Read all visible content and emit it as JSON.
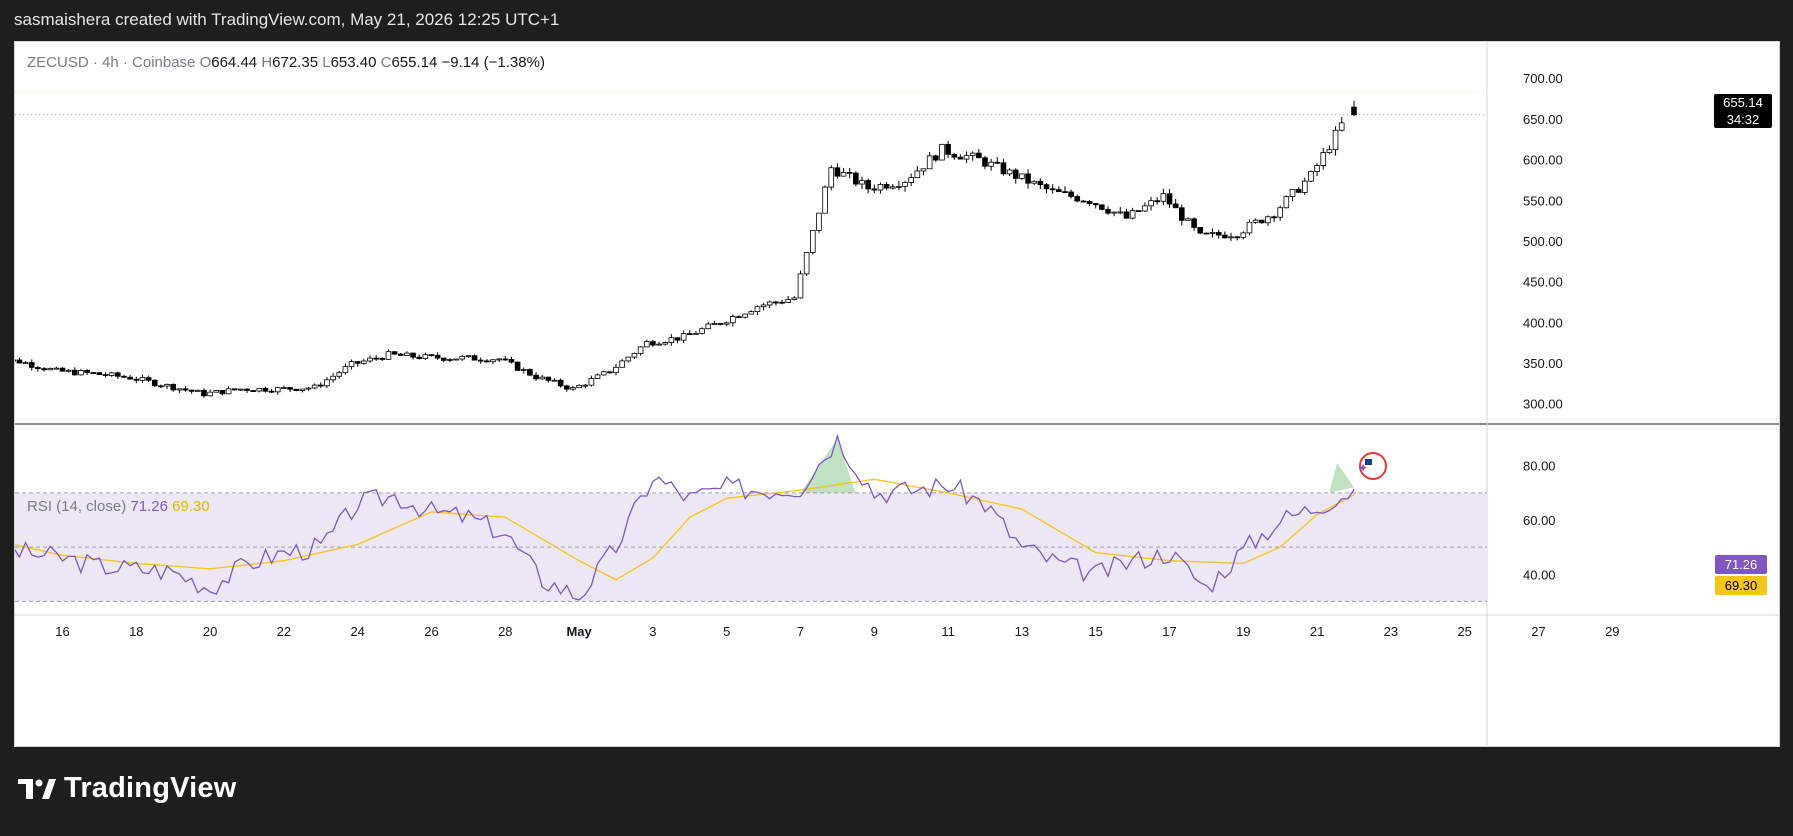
{
  "header": {
    "caption": "sasmaishera created with TradingView.com, May 21, 2026 12:25 UTC+1"
  },
  "legend": {
    "symbol": "ZECUSD · 4h · Coinbase",
    "o_label": "O",
    "o_value": "664.44",
    "h_label": "H",
    "h_value": "672.35",
    "l_label": "L",
    "l_value": "653.40",
    "c_label": "C",
    "c_value": "655.14",
    "change": "−9.14 (−1.38%)"
  },
  "rsi_legend": {
    "label": "RSI (14, close)",
    "rsi_value": "71.26",
    "ma_value": "69.30"
  },
  "last_price_badge": {
    "price": "655.14",
    "countdown": "34:32"
  },
  "brand": {
    "name": "TradingView",
    "icon": "tradingview-logo-icon"
  },
  "event_marker": {
    "icon": "us-flag-icon"
  },
  "colors": {
    "candle_up": "#ffffff",
    "candle_down": "#000000",
    "candle_border": "#000000",
    "rsi_line": "#7e57c2",
    "rsi_ma": "#f5c518",
    "rsi_band": "#ede7f6",
    "overbought_fill": "#4caf50"
  },
  "chart_data": [
    {
      "type": "candlestick",
      "x_type": "date",
      "x_tick_labels": [
        "16",
        "18",
        "20",
        "22",
        "24",
        "26",
        "28",
        "May",
        "3",
        "5",
        "7",
        "9",
        "11",
        "13",
        "15",
        "17",
        "19",
        "21",
        "23",
        "25",
        "27",
        "29"
      ],
      "y_ticks": [
        "300.00",
        "350.00",
        "400.00",
        "450.00",
        "500.00",
        "550.00",
        "600.00",
        "650.00",
        "700.00"
      ],
      "ylim": [
        275,
        715
      ],
      "date_range": [
        "2026-04-14",
        "2026-05-21"
      ],
      "close_points": [
        {
          "x": "2026-04-14",
          "y": 355
        },
        {
          "x": "2026-04-15",
          "y": 352
        },
        {
          "x": "2026-04-16",
          "y": 340
        },
        {
          "x": "2026-04-17",
          "y": 337
        },
        {
          "x": "2026-04-18",
          "y": 332
        },
        {
          "x": "2026-04-19",
          "y": 322
        },
        {
          "x": "2026-04-20",
          "y": 312
        },
        {
          "x": "2026-04-21",
          "y": 318
        },
        {
          "x": "2026-04-22",
          "y": 318
        },
        {
          "x": "2026-04-23",
          "y": 320
        },
        {
          "x": "2026-04-24",
          "y": 348
        },
        {
          "x": "2026-04-25",
          "y": 360
        },
        {
          "x": "2026-04-26",
          "y": 357
        },
        {
          "x": "2026-04-27",
          "y": 356
        },
        {
          "x": "2026-04-28",
          "y": 355
        },
        {
          "x": "2026-04-29",
          "y": 333
        },
        {
          "x": "2026-04-30",
          "y": 318
        },
        {
          "x": "2026-05-01",
          "y": 340
        },
        {
          "x": "2026-05-02",
          "y": 375
        },
        {
          "x": "2026-05-03",
          "y": 382
        },
        {
          "x": "2026-05-04",
          "y": 400
        },
        {
          "x": "2026-05-05",
          "y": 420
        },
        {
          "x": "2026-05-06",
          "y": 430
        },
        {
          "x": "2026-05-07",
          "y": 590
        },
        {
          "x": "2026-05-08",
          "y": 565
        },
        {
          "x": "2026-05-09",
          "y": 575
        },
        {
          "x": "2026-05-10",
          "y": 612
        },
        {
          "x": "2026-05-11",
          "y": 600
        },
        {
          "x": "2026-05-12",
          "y": 580
        },
        {
          "x": "2026-05-13",
          "y": 560
        },
        {
          "x": "2026-05-14",
          "y": 550
        },
        {
          "x": "2026-05-15",
          "y": 528
        },
        {
          "x": "2026-05-16",
          "y": 555
        },
        {
          "x": "2026-05-17",
          "y": 505
        },
        {
          "x": "2026-05-18",
          "y": 510
        },
        {
          "x": "2026-05-19",
          "y": 535
        },
        {
          "x": "2026-05-20",
          "y": 580
        },
        {
          "x": "2026-05-21",
          "y": 655.14
        }
      ],
      "last_candle": {
        "open": 664.44,
        "high": 672.35,
        "low": 653.4,
        "close": 655.14
      },
      "session_high": 684,
      "session_low": 300
    },
    {
      "type": "line",
      "title": "RSI (14, close)",
      "ylim": [
        25,
        95
      ],
      "y_ticks": [
        "40.00",
        "60.00",
        "80.00"
      ],
      "bands": [
        30,
        50,
        70
      ],
      "series": [
        {
          "name": "RSI",
          "points": [
            {
              "x": "2026-04-14",
              "y": 50
            },
            {
              "x": "2026-04-15",
              "y": 48
            },
            {
              "x": "2026-04-16",
              "y": 46
            },
            {
              "x": "2026-04-17",
              "y": 43
            },
            {
              "x": "2026-04-18",
              "y": 42
            },
            {
              "x": "2026-04-19",
              "y": 41
            },
            {
              "x": "2026-04-20",
              "y": 35
            },
            {
              "x": "2026-04-21",
              "y": 44
            },
            {
              "x": "2026-04-22",
              "y": 48
            },
            {
              "x": "2026-04-23",
              "y": 50
            },
            {
              "x": "2026-04-24",
              "y": 66
            },
            {
              "x": "2026-04-25",
              "y": 69
            },
            {
              "x": "2026-04-26",
              "y": 63
            },
            {
              "x": "2026-04-27",
              "y": 61
            },
            {
              "x": "2026-04-28",
              "y": 55
            },
            {
              "x": "2026-04-29",
              "y": 38
            },
            {
              "x": "2026-04-30",
              "y": 32
            },
            {
              "x": "2026-05-01",
              "y": 50
            },
            {
              "x": "2026-05-02",
              "y": 76
            },
            {
              "x": "2026-05-03",
              "y": 68
            },
            {
              "x": "2026-05-04",
              "y": 72
            },
            {
              "x": "2026-05-05",
              "y": 71
            },
            {
              "x": "2026-05-06",
              "y": 72
            },
            {
              "x": "2026-05-07",
              "y": 90
            },
            {
              "x": "2026-05-08",
              "y": 70
            },
            {
              "x": "2026-05-09",
              "y": 71
            },
            {
              "x": "2026-05-10",
              "y": 73
            },
            {
              "x": "2026-05-11",
              "y": 66
            },
            {
              "x": "2026-05-12",
              "y": 50
            },
            {
              "x": "2026-05-13",
              "y": 44
            },
            {
              "x": "2026-05-14",
              "y": 40
            },
            {
              "x": "2026-05-15",
              "y": 45
            },
            {
              "x": "2026-05-16",
              "y": 48
            },
            {
              "x": "2026-05-17",
              "y": 35
            },
            {
              "x": "2026-05-18",
              "y": 49
            },
            {
              "x": "2026-05-19",
              "y": 60
            },
            {
              "x": "2026-05-20",
              "y": 65
            },
            {
              "x": "2026-05-21",
              "y": 71.26
            }
          ]
        },
        {
          "name": "MA",
          "points": [
            {
              "x": "2026-04-14",
              "y": 53
            },
            {
              "x": "2026-04-16",
              "y": 47
            },
            {
              "x": "2026-04-18",
              "y": 44
            },
            {
              "x": "2026-04-20",
              "y": 42
            },
            {
              "x": "2026-04-22",
              "y": 45
            },
            {
              "x": "2026-04-24",
              "y": 51
            },
            {
              "x": "2026-04-26",
              "y": 63
            },
            {
              "x": "2026-04-28",
              "y": 61
            },
            {
              "x": "2026-04-30",
              "y": 45
            },
            {
              "x": "2026-05-01",
              "y": 38
            },
            {
              "x": "2026-05-02",
              "y": 46
            },
            {
              "x": "2026-05-03",
              "y": 61
            },
            {
              "x": "2026-05-04",
              "y": 68
            },
            {
              "x": "2026-05-06",
              "y": 71
            },
            {
              "x": "2026-05-08",
              "y": 75
            },
            {
              "x": "2026-05-10",
              "y": 70
            },
            {
              "x": "2026-05-12",
              "y": 64
            },
            {
              "x": "2026-05-14",
              "y": 48
            },
            {
              "x": "2026-05-16",
              "y": 45
            },
            {
              "x": "2026-05-18",
              "y": 44
            },
            {
              "x": "2026-05-19",
              "y": 50
            },
            {
              "x": "2026-05-20",
              "y": 62
            },
            {
              "x": "2026-05-21",
              "y": 69.3
            }
          ]
        }
      ]
    }
  ]
}
